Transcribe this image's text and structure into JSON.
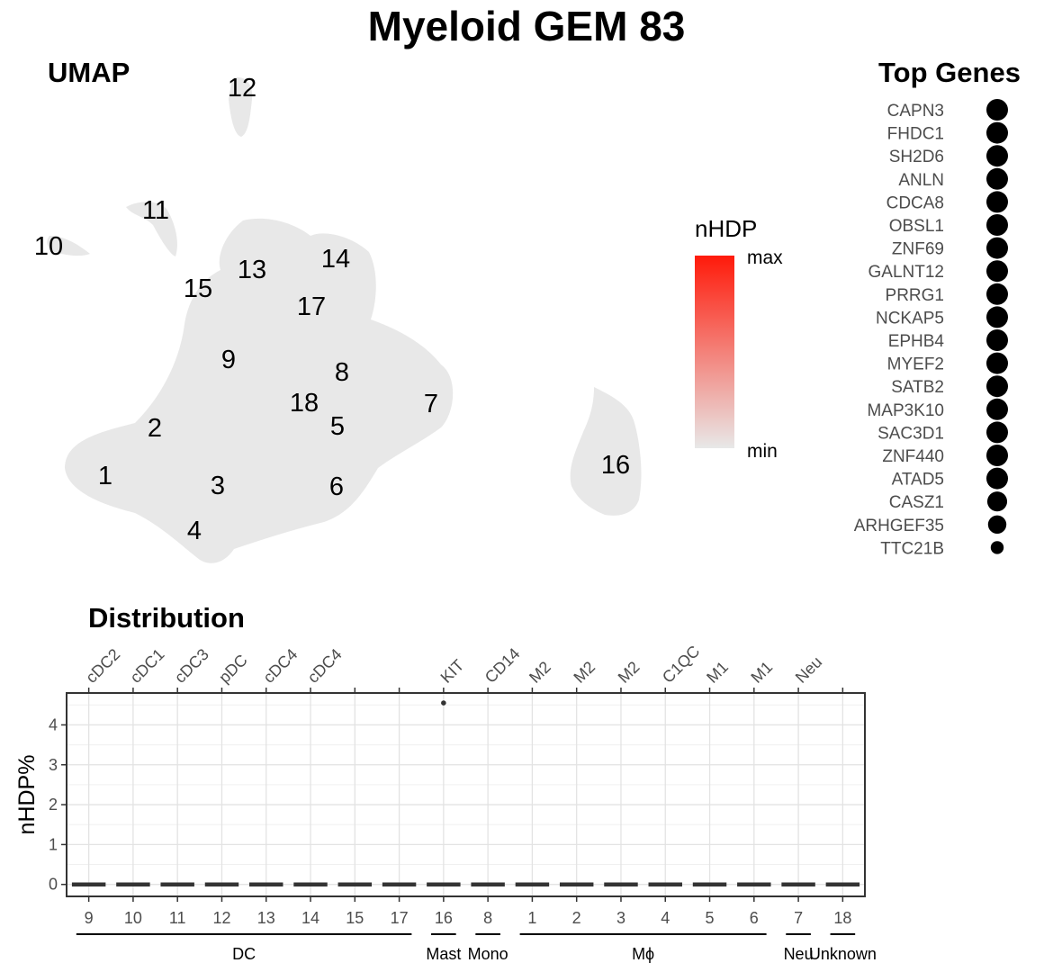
{
  "title": "Myeloid GEM 83",
  "umap": {
    "title": "UMAP",
    "cluster_labels": [
      "1",
      "2",
      "3",
      "4",
      "5",
      "6",
      "7",
      "8",
      "9",
      "10",
      "11",
      "12",
      "13",
      "14",
      "15",
      "16",
      "17",
      "18"
    ],
    "point_color": "#e8e8e8"
  },
  "legend": {
    "title": "nHDP",
    "max_label": "max",
    "min_label": "min",
    "color_max": "#ff1a0a",
    "color_min": "#e8e8e8"
  },
  "top_genes": {
    "title": "Top Genes",
    "genes": [
      "CAPN3",
      "FHDC1",
      "SH2D6",
      "ANLN",
      "CDCA8",
      "OBSL1",
      "ZNF69",
      "GALNT12",
      "PRRG1",
      "NCKAP5",
      "EPHB4",
      "MYEF2",
      "SATB2",
      "MAP3K10",
      "SAC3D1",
      "ZNF440",
      "ATAD5",
      "CASZ1",
      "ARHGEF35",
      "TTC21B"
    ],
    "relative_size": [
      1,
      1,
      1,
      1,
      1,
      1,
      1,
      1,
      1,
      1,
      1,
      1,
      1,
      1,
      1,
      1,
      1,
      0.92,
      0.85,
      0.6
    ]
  },
  "chart_data": {
    "type": "box",
    "title": "Distribution",
    "xlabel": "",
    "ylabel": "nHDP%",
    "ylim": [
      -0.3,
      4.8
    ],
    "yticks": [
      0,
      1,
      2,
      3,
      4
    ],
    "categories": [
      "9",
      "10",
      "11",
      "12",
      "13",
      "14",
      "15",
      "17",
      "16",
      "8",
      "1",
      "2",
      "3",
      "4",
      "5",
      "6",
      "7",
      "18"
    ],
    "top_labels": [
      "cDC2",
      "cDC1",
      "cDC3",
      "pDC",
      "cDC4",
      "cDC4",
      "",
      "",
      "KIT",
      "CD14",
      "M2",
      "M2",
      "M2",
      "C1QC",
      "M1",
      "M1",
      "Neu",
      ""
    ],
    "median": [
      0,
      0,
      0,
      0,
      0,
      0,
      0,
      0,
      0,
      0,
      0,
      0,
      0,
      0,
      0,
      0,
      0,
      0
    ],
    "outliers": [
      {
        "category": "16",
        "value": 4.55
      }
    ],
    "groups": [
      {
        "name": "DC",
        "categories": [
          "9",
          "10",
          "11",
          "12",
          "13",
          "14",
          "15",
          "17"
        ]
      },
      {
        "name": "Mast",
        "categories": [
          "16"
        ]
      },
      {
        "name": "Mono",
        "categories": [
          "8"
        ]
      },
      {
        "name": "Mϕ",
        "categories": [
          "1",
          "2",
          "3",
          "4",
          "5",
          "6"
        ]
      },
      {
        "name": "Neu",
        "categories": [
          "7"
        ]
      },
      {
        "name": "Unknown",
        "categories": [
          "18"
        ]
      }
    ],
    "grid": true
  }
}
